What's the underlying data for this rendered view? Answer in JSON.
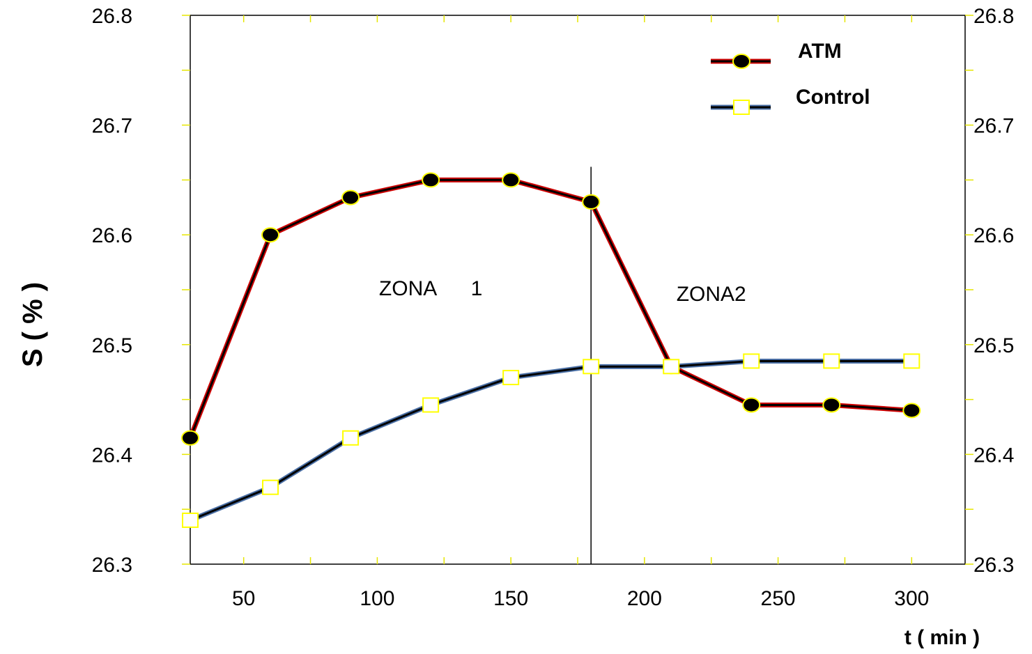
{
  "chart_data": {
    "type": "line",
    "title": "",
    "xlabel": "t ( min )",
    "ylabel": "S ( % )",
    "xlim": [
      30,
      320
    ],
    "ylim": [
      26.3,
      26.8
    ],
    "x_ticks": [
      50,
      100,
      150,
      200,
      250,
      300
    ],
    "y_ticks": [
      26.3,
      26.4,
      26.5,
      26.6,
      26.7,
      26.8
    ],
    "secondary_y_axis": true,
    "grid": false,
    "legend_position": "top-right",
    "series": [
      {
        "name": "ATM",
        "marker": "filled-circle",
        "line_color": "#cc0000",
        "marker_fill": "#000000",
        "marker_edge": "#ffff00",
        "x": [
          30,
          60,
          90,
          120,
          150,
          180,
          210,
          240,
          270,
          300
        ],
        "y": [
          26.415,
          26.6,
          26.634,
          26.65,
          26.65,
          26.63,
          26.48,
          26.445,
          26.445,
          26.44
        ]
      },
      {
        "name": "Control",
        "marker": "open-square",
        "line_color": "#4a6fa5",
        "marker_fill": "#ffffff",
        "marker_edge": "#ffff00",
        "x": [
          30,
          60,
          90,
          120,
          150,
          180,
          210,
          240,
          270,
          300
        ],
        "y": [
          26.34,
          26.37,
          26.415,
          26.445,
          26.47,
          26.48,
          26.48,
          26.485,
          26.485,
          26.485
        ]
      }
    ],
    "annotations": [
      {
        "text": "ZONA      1",
        "x": 120,
        "y": 26.545
      },
      {
        "text": "ZONA2",
        "x": 225,
        "y": 26.54
      }
    ],
    "divider_x": 180,
    "divider_y_top": 26.662
  }
}
